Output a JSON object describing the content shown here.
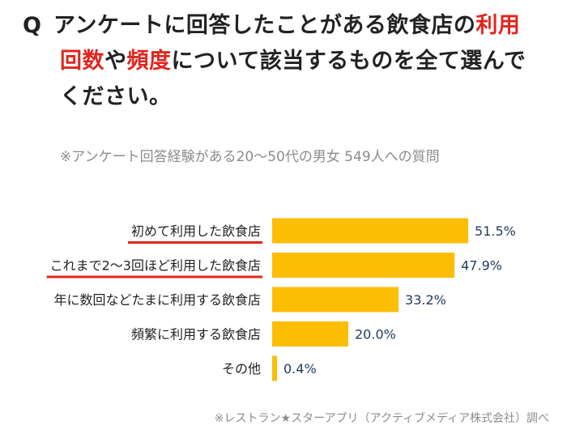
{
  "question": {
    "mark": "Q",
    "line1_a": "アンケートに回答したことがある飲食店の",
    "line1_hl": "利用",
    "line2_hl1": "回数",
    "line2_b": "や",
    "line2_hl2": "頻度",
    "line2_c": "について該当するものを全て選んで",
    "line3": "ください。"
  },
  "note": "※アンケート回答経験がある20～50代の男女 549人への質問",
  "source": "※レストラン★スターアプリ（アクティブメディア株式会社）調べ",
  "colors": {
    "bar": "#fcbd05",
    "highlight": "#e0261e",
    "value_text": "#1f3a5f"
  },
  "chart_data": {
    "type": "bar",
    "orientation": "horizontal",
    "categories": [
      "初めて利用した飲食店",
      "これまで2～3回ほど利用した飲食店",
      "年に数回などたまに利用する飲食店",
      "頻繁に利用する飲食店",
      "その他"
    ],
    "values": [
      51.5,
      47.9,
      33.2,
      20.0,
      0.4
    ],
    "value_labels": [
      "51.5%",
      "47.9%",
      "33.2%",
      "20.0%",
      "0.4%"
    ],
    "underlined_categories": [
      0,
      1
    ],
    "xlim": [
      0,
      100
    ],
    "grid": false,
    "legend": "none"
  }
}
